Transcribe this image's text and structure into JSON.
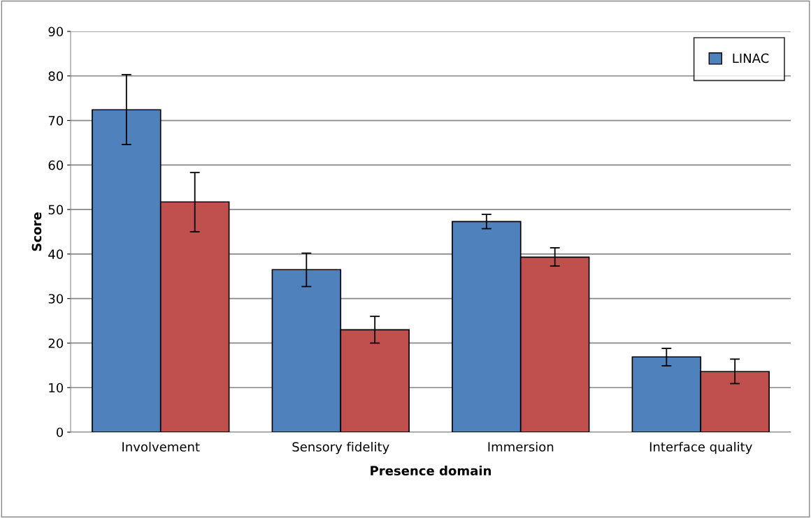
{
  "chart_data": {
    "type": "bar",
    "xlabel": "Presence domain",
    "ylabel": "Score",
    "categories": [
      "Involvement",
      "Sensory fidelity",
      "Immersion",
      "Interface quality"
    ],
    "series": [
      {
        "name": "LINAC",
        "color": "#4f81bd",
        "values": [
          72.4,
          36.5,
          47.3,
          16.9
        ],
        "errors": [
          [
            64.6,
            80.3
          ],
          [
            32.7,
            40.2
          ],
          [
            45.7,
            48.9
          ],
          [
            14.9,
            18.8
          ]
        ]
      },
      {
        "color": "#c0504d",
        "values": [
          51.7,
          23.0,
          39.3,
          13.6
        ],
        "errors": [
          [
            45.0,
            58.3
          ],
          [
            20.0,
            26.0
          ],
          [
            37.3,
            41.4
          ],
          [
            10.9,
            16.4
          ]
        ]
      }
    ],
    "ylim": [
      0,
      90
    ],
    "yticks": [
      0,
      10,
      20,
      30,
      40,
      50,
      60,
      70,
      80,
      90
    ],
    "grid": "y",
    "legend": "top right"
  }
}
